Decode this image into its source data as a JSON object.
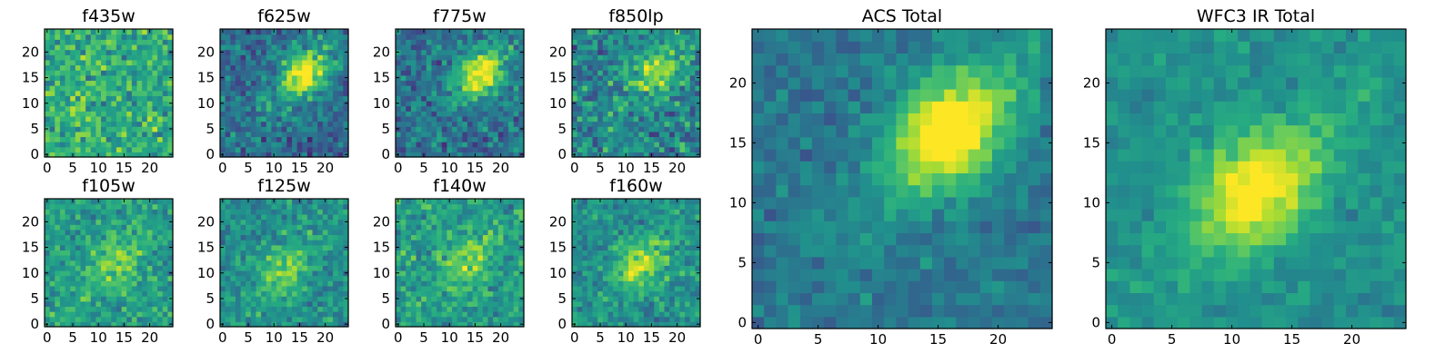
{
  "chart_data": {
    "type": "heatmap",
    "colormap": "viridis",
    "grid": false,
    "panels": [
      {
        "title": "f435w",
        "x_ticks": [
          "0",
          "5",
          "10",
          "15",
          "20"
        ],
        "y_ticks": [
          "0",
          "5",
          "10",
          "15",
          "20"
        ],
        "xlim": [
          0,
          25
        ],
        "ylim": [
          0,
          25
        ],
        "peak": [
          10,
          10
        ],
        "signal": 0.05,
        "noise": 0.9,
        "bias": 0.62
      },
      {
        "title": "f625w",
        "x_ticks": [
          "0",
          "5",
          "10",
          "15",
          "20"
        ],
        "y_ticks": [
          "0",
          "5",
          "10",
          "15",
          "20"
        ],
        "xlim": [
          0,
          25
        ],
        "ylim": [
          0,
          25
        ],
        "peak": [
          16,
          16
        ],
        "signal": 0.75,
        "noise": 0.8,
        "bias": 0.35
      },
      {
        "title": "f775w",
        "x_ticks": [
          "0",
          "5",
          "10",
          "15",
          "20"
        ],
        "y_ticks": [
          "0",
          "5",
          "10",
          "15",
          "20"
        ],
        "xlim": [
          0,
          25
        ],
        "ylim": [
          0,
          25
        ],
        "peak": [
          16,
          16
        ],
        "signal": 0.7,
        "noise": 0.8,
        "bias": 0.38
      },
      {
        "title": "f850lp",
        "x_ticks": [
          "0",
          "5",
          "10",
          "15",
          "20"
        ],
        "y_ticks": [
          "0",
          "5",
          "10",
          "15",
          "20"
        ],
        "xlim": [
          0,
          25
        ],
        "ylim": [
          0,
          25
        ],
        "peak": [
          16,
          16
        ],
        "signal": 0.5,
        "noise": 0.95,
        "bias": 0.45
      },
      {
        "title": "f105w",
        "x_ticks": [
          "0",
          "5",
          "10",
          "15",
          "20"
        ],
        "y_ticks": [
          "0",
          "5",
          "10",
          "15",
          "20"
        ],
        "xlim": [
          0,
          25
        ],
        "ylim": [
          0,
          25
        ],
        "peak": [
          13,
          12
        ],
        "signal": 0.3,
        "noise": 0.7,
        "bias": 0.55
      },
      {
        "title": "f125w",
        "x_ticks": [
          "0",
          "5",
          "10",
          "15",
          "20"
        ],
        "y_ticks": [
          "0",
          "5",
          "10",
          "15",
          "20"
        ],
        "xlim": [
          0,
          25
        ],
        "ylim": [
          0,
          25
        ],
        "peak": [
          12,
          10
        ],
        "signal": 0.35,
        "noise": 0.7,
        "bias": 0.5
      },
      {
        "title": "f140w",
        "x_ticks": [
          "0",
          "5",
          "10",
          "15",
          "20"
        ],
        "y_ticks": [
          "0",
          "5",
          "10",
          "15",
          "20"
        ],
        "xlim": [
          0,
          25
        ],
        "ylim": [
          0,
          25
        ],
        "peak": [
          13,
          12
        ],
        "signal": 0.3,
        "noise": 0.75,
        "bias": 0.55
      },
      {
        "title": "f160w",
        "x_ticks": [
          "0",
          "5",
          "10",
          "15",
          "20"
        ],
        "y_ticks": [
          "0",
          "5",
          "10",
          "15",
          "20"
        ],
        "xlim": [
          0,
          25
        ],
        "ylim": [
          0,
          25
        ],
        "peak": [
          13,
          12
        ],
        "signal": 0.45,
        "noise": 0.7,
        "bias": 0.5
      },
      {
        "title": "ACS Total",
        "x_ticks": [
          "0",
          "5",
          "10",
          "15",
          "20"
        ],
        "y_ticks": [
          "0",
          "5",
          "10",
          "15",
          "20"
        ],
        "xlim": [
          0,
          25
        ],
        "ylim": [
          0,
          25
        ],
        "peak": [
          16,
          16
        ],
        "signal": 0.85,
        "noise": 0.45,
        "bias": 0.4
      },
      {
        "title": "WFC3 IR Total",
        "x_ticks": [
          "0",
          "5",
          "10",
          "15",
          "20"
        ],
        "y_ticks": [
          "0",
          "5",
          "10",
          "15",
          "20"
        ],
        "xlim": [
          0,
          25
        ],
        "ylim": [
          0,
          25
        ],
        "peak": [
          12,
          11
        ],
        "signal": 0.65,
        "noise": 0.4,
        "bias": 0.5
      }
    ]
  }
}
